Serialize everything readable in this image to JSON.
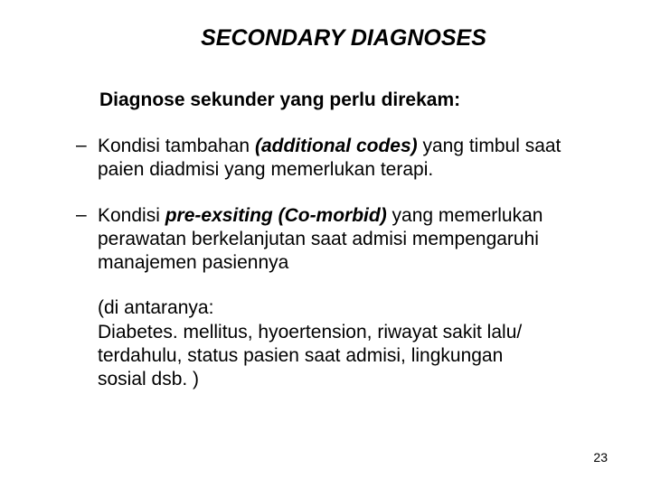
{
  "title": "SECONDARY DIAGNOSES",
  "subtitle": "Diagnose sekunder yang perlu direkam:",
  "bullets": [
    {
      "pre": "Kondisi tambahan ",
      "emph": "(additional codes)",
      "post": " yang timbul saat paien diadmisi yang memerlukan terapi."
    },
    {
      "pre": "Kondisi ",
      "emph": "pre-exsiting (Co-morbid)",
      "post": " yang memerlukan perawatan berkelanjutan saat admisi mempengaruhi manajemen pasiennya"
    }
  ],
  "paren_lines": [
    "(di antaranya:",
    "Diabetes. mellitus, hyoertension, riwayat sakit lalu/",
    "terdahulu, status pasien saat admisi, lingkungan",
    "sosial dsb. )"
  ],
  "page_number": "23",
  "colors": {
    "background": "#ffffff",
    "text": "#000000"
  }
}
